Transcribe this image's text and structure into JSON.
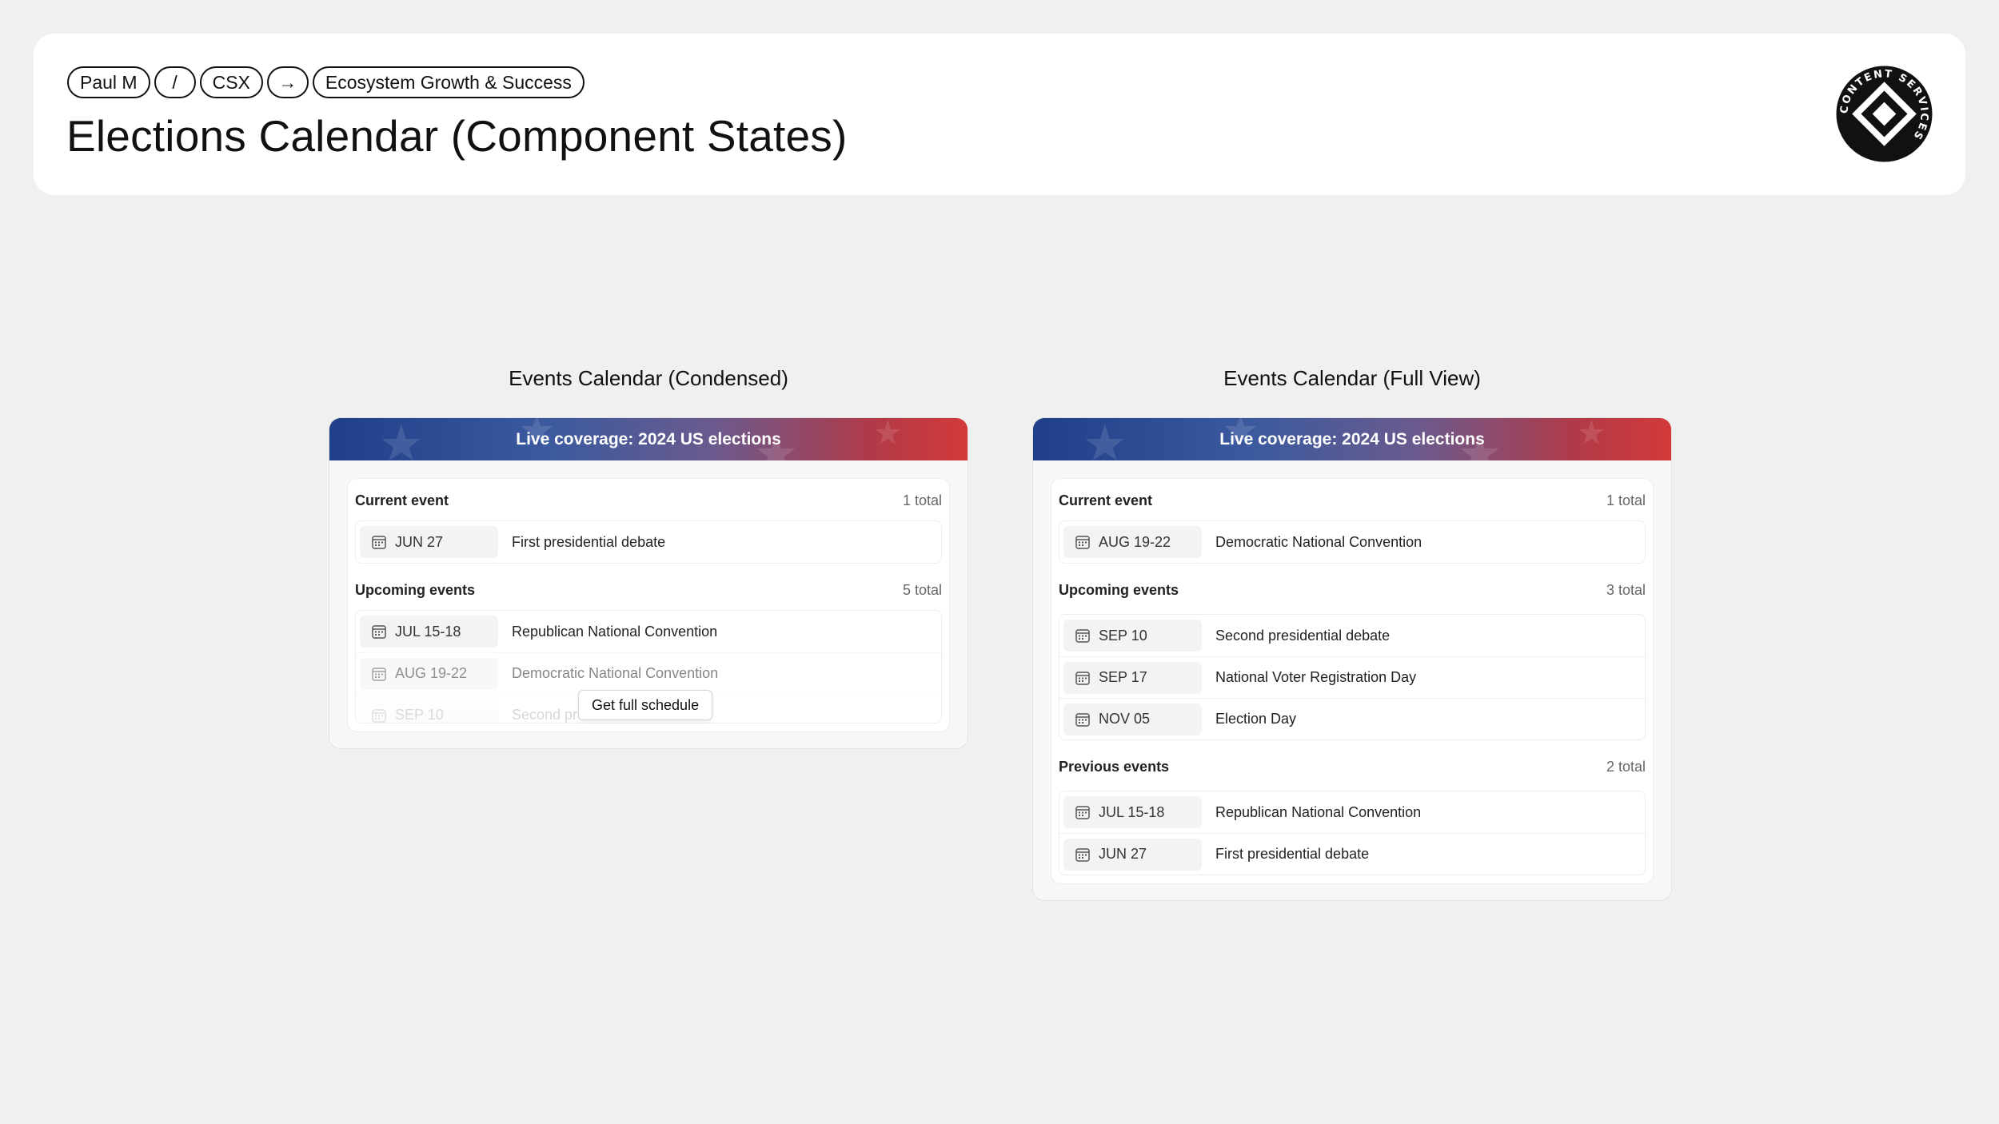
{
  "header": {
    "breadcrumbs": [
      "Paul M",
      "/",
      "CSX",
      "→",
      "Ecosystem Growth & Success"
    ],
    "title": "Elections Calendar (Component States)",
    "logo_text": "CONTENT SERVICES"
  },
  "condensed": {
    "panel_title": "Events Calendar (Condensed)",
    "banner": "Live coverage: 2024 US elections",
    "current": {
      "label": "Current event",
      "count": "1 total",
      "items": [
        {
          "date": "JUN 27",
          "name": "First presidential debate"
        }
      ]
    },
    "upcoming": {
      "label": "Upcoming events",
      "count": "5 total",
      "items": [
        {
          "date": "JUL 15-18",
          "name": "Republican National Convention"
        },
        {
          "date": "AUG 19-22",
          "name": "Democratic National Convention"
        },
        {
          "date": "SEP 10",
          "name": "Second presidential debate"
        }
      ]
    },
    "more_button": "Get full schedule"
  },
  "full": {
    "panel_title": "Events Calendar (Full View)",
    "banner": "Live coverage: 2024 US elections",
    "current": {
      "label": "Current event",
      "count": "1 total",
      "items": [
        {
          "date": "AUG 19-22",
          "name": "Democratic National Convention"
        }
      ]
    },
    "upcoming": {
      "label": "Upcoming events",
      "count": "3 total",
      "items": [
        {
          "date": "SEP 10",
          "name": "Second presidential debate"
        },
        {
          "date": "SEP 17",
          "name": "National Voter Registration Day"
        },
        {
          "date": "NOV 05",
          "name": "Election Day"
        }
      ]
    },
    "previous": {
      "label": "Previous events",
      "count": "2 total",
      "items": [
        {
          "date": "JUL 15-18",
          "name": "Republican National Convention"
        },
        {
          "date": "JUN 27",
          "name": "First presidential debate"
        }
      ]
    }
  },
  "colors": {
    "banner_blue": "#1f3f8a",
    "banner_red": "#d23a3a",
    "background": "#f0f0f0"
  },
  "icons": {
    "date_chip": "calendar-icon",
    "logo": "content-services-logo"
  }
}
